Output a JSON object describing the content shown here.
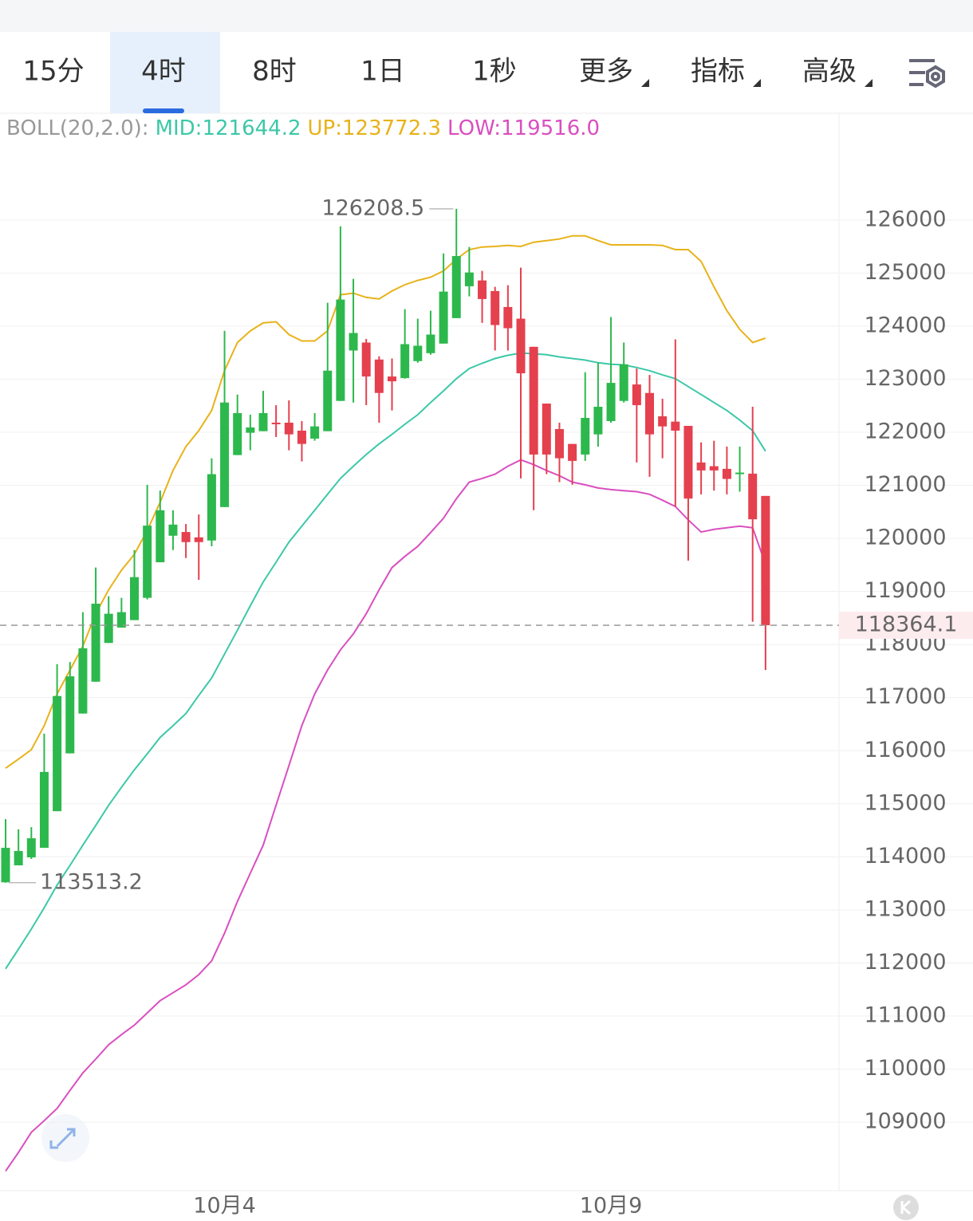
{
  "chart_data": {
    "type": "candlestick",
    "tabs": [
      {
        "label": "15分"
      },
      {
        "label": "4时",
        "active": true
      },
      {
        "label": "8时"
      },
      {
        "label": "1日"
      },
      {
        "label": "1秒"
      },
      {
        "label": "更多",
        "dropdown": true
      },
      {
        "label": "指标",
        "dropdown": true
      },
      {
        "label": "高级",
        "dropdown": true
      }
    ],
    "indicator": "BOLL(20,2.0):",
    "up_color": "#2db84d",
    "down_color": "#e5404e",
    "categories": [
      null,
      null,
      null,
      null,
      null,
      null,
      null,
      null,
      null,
      null,
      null,
      null,
      null,
      null,
      null,
      null,
      null,
      "10月4",
      null,
      null,
      null,
      null,
      null,
      null,
      null,
      null,
      null,
      null,
      null,
      null,
      null,
      null,
      null,
      null,
      null,
      null,
      null,
      null,
      null,
      null,
      null,
      null,
      null,
      null,
      null,
      null,
      null,
      "10月9",
      null,
      null,
      null,
      null,
      null,
      null,
      null,
      null,
      null,
      null,
      null,
      null
    ],
    "candles": {
      "open": [
        113520,
        113840,
        113990,
        114170,
        114860,
        115950,
        116700,
        117300,
        118030,
        118320,
        118460,
        118880,
        119550,
        120050,
        120120,
        120020,
        119960,
        120590,
        121570,
        121990,
        122020,
        122180,
        122180,
        122030,
        121880,
        122020,
        122590,
        123540,
        123690,
        123370,
        123050,
        123020,
        123340,
        123490,
        123670,
        124150,
        124750,
        124860,
        124660,
        124360,
        124140,
        123610,
        122540,
        122060,
        121780,
        121580,
        121960,
        122210,
        122590,
        122900,
        122740,
        122300,
        122200,
        122120,
        121430,
        121360,
        121310,
        121210,
        121220,
        120800
      ],
      "high": [
        114710,
        114520,
        114560,
        116320,
        117630,
        117670,
        118610,
        119450,
        118910,
        118880,
        119780,
        121010,
        120900,
        120530,
        120270,
        120450,
        121510,
        123910,
        122710,
        122330,
        122780,
        122510,
        122600,
        122210,
        122360,
        124440,
        125880,
        124890,
        123760,
        123430,
        123390,
        124320,
        124140,
        124290,
        125370,
        126208.5,
        125490,
        125040,
        124740,
        124770,
        125100,
        123610,
        122540,
        122180,
        121780,
        123130,
        123310,
        124170,
        123690,
        123200,
        123080,
        122630,
        123750,
        122120,
        121810,
        121840,
        121730,
        121730,
        122480,
        120800
      ],
      "low": [
        113513.2,
        113840,
        113960,
        114170,
        114860,
        115950,
        116700,
        117300,
        118030,
        118320,
        118460,
        118850,
        119550,
        119780,
        119630,
        119220,
        119850,
        120590,
        121570,
        121660,
        122020,
        121910,
        121660,
        121450,
        121840,
        122020,
        122590,
        122560,
        122510,
        122180,
        122410,
        123010,
        123310,
        123460,
        123670,
        124150,
        124560,
        124060,
        123540,
        123540,
        121130,
        120530,
        121210,
        121060,
        121010,
        121460,
        121730,
        122180,
        122560,
        121430,
        121160,
        121510,
        120600,
        119580,
        120830,
        120900,
        120830,
        120880,
        118430,
        117520
      ],
      "close": [
        114170,
        114110,
        114350,
        115600,
        117030,
        117400,
        117930,
        118770,
        118580,
        118610,
        119270,
        120240,
        120530,
        120260,
        119930,
        119930,
        121210,
        122560,
        122360,
        122090,
        122360,
        122150,
        121960,
        121780,
        122110,
        123160,
        124500,
        123870,
        123050,
        122740,
        122960,
        123660,
        123630,
        123840,
        124650,
        125320,
        125010,
        124510,
        124020,
        123960,
        123110,
        121580,
        121580,
        121510,
        121460,
        122270,
        122480,
        122930,
        123280,
        122510,
        121960,
        122110,
        122030,
        120750,
        121280,
        121280,
        121120,
        121240,
        120360,
        118364.1
      ]
    },
    "bands": [
      {
        "name": "MID:",
        "legend_value": 121644.2,
        "color": "#3cc8a8",
        "values": [
          111890,
          112260,
          112640,
          113040,
          113470,
          113840,
          114220,
          114590,
          114970,
          115310,
          115640,
          115940,
          116250,
          116470,
          116700,
          117040,
          117370,
          117820,
          118270,
          118730,
          119180,
          119550,
          119930,
          120230,
          120530,
          120830,
          121130,
          121360,
          121580,
          121780,
          121960,
          122150,
          122330,
          122560,
          122780,
          123010,
          123200,
          123300,
          123390,
          123450,
          123490,
          123480,
          123460,
          123420,
          123390,
          123360,
          123310,
          123280,
          123270,
          123220,
          123160,
          123080,
          123010,
          122860,
          122710,
          122560,
          122410,
          122230,
          122030,
          121644.2
        ]
      },
      {
        "name": "UP:",
        "legend_value": 123772.3,
        "color": "#e8b21a",
        "values": [
          115670,
          115840,
          116020,
          116470,
          117070,
          117520,
          117970,
          118580,
          119030,
          119400,
          119700,
          120150,
          120680,
          121280,
          121730,
          122030,
          122410,
          123160,
          123690,
          123910,
          124060,
          124080,
          123840,
          123720,
          123720,
          123910,
          124590,
          124620,
          124540,
          124510,
          124660,
          124780,
          124860,
          124920,
          125040,
          125260,
          125440,
          125490,
          125500,
          125520,
          125500,
          125580,
          125610,
          125640,
          125700,
          125700,
          125610,
          125530,
          125530,
          125530,
          125530,
          125520,
          125440,
          125440,
          125220,
          124740,
          124290,
          123940,
          123690,
          123772.3
        ]
      },
      {
        "name": "LOW:",
        "legend_value": 119516.0,
        "legend_label": "119516.0",
        "color": "#d94fc0",
        "values": [
          108080,
          108430,
          108810,
          109030,
          109260,
          109600,
          109930,
          110190,
          110460,
          110650,
          110830,
          111060,
          111290,
          111440,
          111590,
          111780,
          112040,
          112560,
          113160,
          113690,
          114220,
          114970,
          115720,
          116470,
          117070,
          117520,
          117900,
          118200,
          118580,
          119030,
          119450,
          119660,
          119850,
          120110,
          120380,
          120750,
          121060,
          121130,
          121210,
          121360,
          121480,
          121390,
          121280,
          121180,
          121060,
          121010,
          120950,
          120920,
          120900,
          120880,
          120830,
          120720,
          120600,
          120350,
          120120,
          120170,
          120200,
          120230,
          120200,
          119516.0
        ]
      }
    ],
    "ylim": [
      107710,
      128010
    ],
    "yticks": [
      109000,
      110000,
      111000,
      112000,
      113000,
      114000,
      115000,
      116000,
      117000,
      118000,
      119000,
      120000,
      121000,
      122000,
      123000,
      124000,
      125000,
      126000
    ],
    "grid": true
  }
}
